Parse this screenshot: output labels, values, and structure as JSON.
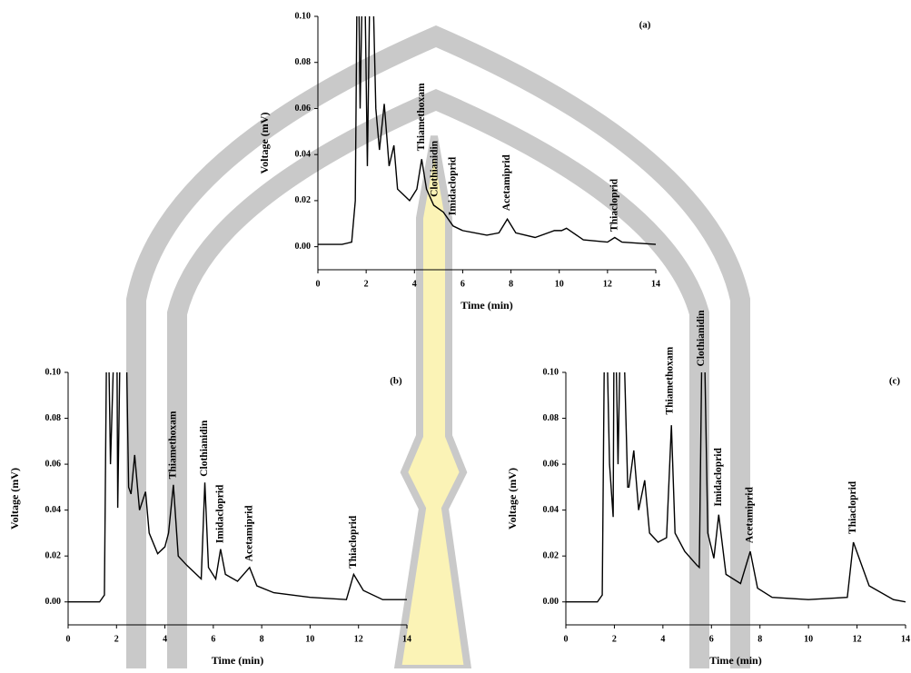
{
  "chart_data": [
    {
      "type": "line",
      "title": "(a)",
      "xlabel": "Time (min)",
      "ylabel": "Voltage (mV)",
      "xlim": [
        0,
        14
      ],
      "ylim": [
        -0.01,
        0.1
      ],
      "xticks": [
        0,
        2,
        4,
        6,
        8,
        10,
        12,
        14
      ],
      "yticks": [
        {
          "value": 0,
          "label": "0.00"
        },
        {
          "value": 0.02,
          "label": "0.02"
        },
        {
          "value": 0.04,
          "label": "0.04"
        },
        {
          "value": 0.06,
          "label": "0.06"
        },
        {
          "value": 0.08,
          "label": "0.08"
        },
        {
          "value": 0.1,
          "label": "0.10"
        }
      ],
      "color": "#000000",
      "x": [
        0,
        1,
        1.4,
        1.55,
        1.65,
        1.75,
        1.9,
        2.05,
        2.2,
        2.4,
        2.55,
        2.75,
        2.95,
        3.15,
        3.3,
        3.5,
        3.8,
        4.1,
        4.3,
        4.5,
        4.8,
        5.2,
        5.6,
        6,
        7,
        7.5,
        7.85,
        8.2,
        9,
        9.8,
        10.1,
        10.3,
        11,
        12,
        12.3,
        12.6,
        14
      ],
      "values": [
        0.001,
        0.001,
        0.002,
        0.02,
        0.15,
        0.06,
        0.15,
        0.035,
        0.15,
        0.06,
        0.042,
        0.062,
        0.035,
        0.044,
        0.025,
        0.023,
        0.02,
        0.025,
        0.038,
        0.025,
        0.018,
        0.015,
        0.009,
        0.007,
        0.005,
        0.006,
        0.012,
        0.006,
        0.004,
        0.007,
        0.007,
        0.008,
        0.003,
        0.002,
        0.004,
        0.002,
        0.001
      ],
      "annotations": [
        {
          "text": "Thiamethoxam",
          "x": 4.3,
          "y": 0.04
        },
        {
          "text": "Clothianidin",
          "x": 4.85,
          "y": 0.02
        },
        {
          "text": "Imidacloprid",
          "x": 5.6,
          "y": 0.012
        },
        {
          "text": "Acetamiprid",
          "x": 7.85,
          "y": 0.014
        },
        {
          "text": "Thiacloprid",
          "x": 12.3,
          "y": 0.005
        }
      ]
    },
    {
      "type": "line",
      "title": "(b)",
      "xlabel": "Time (min)",
      "ylabel": "Voltage (mV)",
      "xlim": [
        0,
        14
      ],
      "ylim": [
        -0.01,
        0.1
      ],
      "xticks": [
        0,
        2,
        4,
        6,
        8,
        10,
        12,
        14
      ],
      "yticks": [
        {
          "value": 0,
          "label": "0.00"
        },
        {
          "value": 0.02,
          "label": "0.02"
        },
        {
          "value": 0.04,
          "label": "0.04"
        },
        {
          "value": 0.06,
          "label": "0.06"
        },
        {
          "value": 0.08,
          "label": "0.08"
        },
        {
          "value": 0.1,
          "label": "0.10"
        }
      ],
      "color": "#000000",
      "x": [
        0,
        1.3,
        1.5,
        1.62,
        1.75,
        2,
        2.05,
        2.2,
        2.35,
        2.5,
        2.6,
        2.75,
        2.95,
        3.2,
        3.35,
        3.7,
        4,
        4.15,
        4.35,
        4.55,
        4.9,
        5.3,
        5.5,
        5.65,
        5.8,
        6.1,
        6.3,
        6.5,
        7,
        7.5,
        7.8,
        8.5,
        10,
        11.5,
        11.8,
        12.2,
        13,
        14
      ],
      "values": [
        0,
        0,
        0.003,
        0.15,
        0.06,
        0.15,
        0.041,
        0.15,
        0.15,
        0.05,
        0.047,
        0.064,
        0.04,
        0.048,
        0.03,
        0.021,
        0.024,
        0.03,
        0.051,
        0.02,
        0.016,
        0.012,
        0.01,
        0.052,
        0.015,
        0.01,
        0.023,
        0.012,
        0.009,
        0.015,
        0.007,
        0.004,
        0.002,
        0.001,
        0.012,
        0.005,
        0.001,
        0.001
      ],
      "annotations": [
        {
          "text": "Thiamethoxam",
          "x": 4.35,
          "y": 0.052
        },
        {
          "text": "Clothianidin",
          "x": 5.65,
          "y": 0.053
        },
        {
          "text": "Imidacloprid",
          "x": 6.3,
          "y": 0.024
        },
        {
          "text": "Acetamiprid",
          "x": 7.5,
          "y": 0.016
        },
        {
          "text": "Thiacloprid",
          "x": 11.8,
          "y": 0.013
        }
      ]
    },
    {
      "type": "line",
      "title": "(c)",
      "xlabel": "Time (min)",
      "ylabel": "Voltage (mV)",
      "xlim": [
        0,
        14
      ],
      "ylim": [
        -0.01,
        0.1
      ],
      "xticks": [
        0,
        2,
        4,
        6,
        8,
        10,
        12,
        14
      ],
      "yticks": [
        {
          "value": 0,
          "label": "0.00"
        },
        {
          "value": 0.02,
          "label": "0.02"
        },
        {
          "value": 0.04,
          "label": "0.04"
        },
        {
          "value": 0.06,
          "label": "0.06"
        },
        {
          "value": 0.08,
          "label": "0.08"
        },
        {
          "value": 0.1,
          "label": "0.10"
        }
      ],
      "color": "#000000",
      "x": [
        0,
        1.3,
        1.5,
        1.62,
        1.8,
        1.95,
        2,
        2.15,
        2.3,
        2.55,
        2.6,
        2.8,
        3,
        3.25,
        3.45,
        3.8,
        4.15,
        4.35,
        4.5,
        4.9,
        5.4,
        5.5,
        5.65,
        5.85,
        6.1,
        6.3,
        6.6,
        7.2,
        7.6,
        7.9,
        8.5,
        10,
        11.6,
        11.85,
        12.5,
        13.5,
        14
      ],
      "values": [
        0,
        0,
        0.003,
        0.15,
        0.06,
        0.037,
        0.15,
        0.06,
        0.15,
        0.05,
        0.05,
        0.066,
        0.04,
        0.053,
        0.03,
        0.026,
        0.028,
        0.077,
        0.03,
        0.022,
        0.016,
        0.015,
        0.15,
        0.03,
        0.019,
        0.038,
        0.012,
        0.008,
        0.022,
        0.006,
        0.002,
        0.001,
        0.002,
        0.026,
        0.007,
        0.001,
        0
      ],
      "annotations": [
        {
          "text": "Thiamethoxam",
          "x": 4.3,
          "y": 0.08
        },
        {
          "text": "Clothianidin",
          "x": 5.6,
          "y": 0.101
        },
        {
          "text": "Imidacloprid",
          "x": 6.3,
          "y": 0.04
        },
        {
          "text": "Acetamiprid",
          "x": 7.6,
          "y": 0.024
        },
        {
          "text": "Thiacloprid",
          "x": 11.85,
          "y": 0.028
        }
      ]
    }
  ]
}
